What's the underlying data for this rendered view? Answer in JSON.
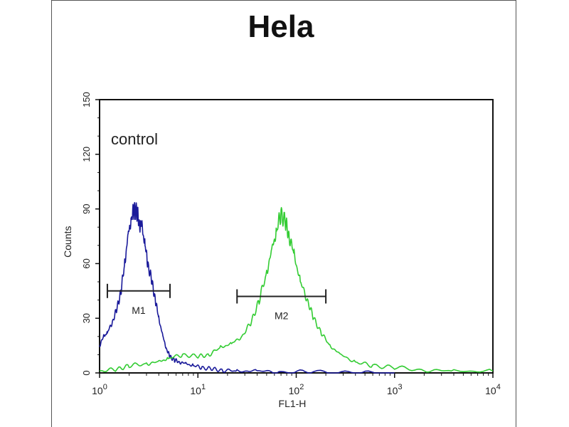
{
  "chart_data": {
    "type": "line",
    "title": "Hela",
    "xlabel": "FL1-H",
    "ylabel": "Counts",
    "x_scale": "log",
    "xlim": [
      1,
      10000
    ],
    "ylim": [
      0,
      150
    ],
    "y_ticks": [
      0,
      30,
      60,
      90,
      120,
      150
    ],
    "x_ticks": [
      {
        "value": 1,
        "base": "10",
        "exp": "0"
      },
      {
        "value": 10,
        "base": "10",
        "exp": "1"
      },
      {
        "value": 100,
        "base": "10",
        "exp": "2"
      },
      {
        "value": 1000,
        "base": "10",
        "exp": "3"
      },
      {
        "value": 10000,
        "base": "10",
        "exp": "4"
      }
    ],
    "grid": false,
    "annotations": {
      "control": "control"
    },
    "markers": [
      {
        "label": "M1",
        "x_start": 1.2,
        "x_end": 5.2,
        "y": 45
      },
      {
        "label": "M2",
        "x_start": 25,
        "x_end": 200,
        "y": 42
      }
    ],
    "series": [
      {
        "color": "#1a1a9a",
        "x": [
          1,
          1.1,
          1.2,
          1.35,
          1.5,
          1.65,
          1.8,
          1.95,
          2.1,
          2.25,
          2.4,
          2.55,
          2.7,
          2.9,
          3.1,
          3.4,
          3.7,
          4.0,
          4.4,
          4.8,
          5.2,
          5.8,
          6.5,
          7.5,
          9,
          11,
          14,
          18,
          25,
          40,
          70,
          150,
          400,
          1000
        ],
        "y": [
          15,
          20,
          22,
          28,
          35,
          45,
          60,
          75,
          85,
          90,
          88,
          82,
          80,
          70,
          60,
          50,
          40,
          30,
          20,
          13,
          9,
          7,
          6,
          5,
          4,
          3,
          2,
          1.5,
          1,
          1,
          0.5,
          0.5,
          0,
          0
        ]
      },
      {
        "color": "#33cc33",
        "x": [
          1,
          1.5,
          2,
          3,
          4,
          5,
          7,
          10,
          13,
          17,
          22,
          28,
          35,
          42,
          50,
          57,
          63,
          70,
          78,
          85,
          95,
          110,
          130,
          150,
          180,
          220,
          280,
          400,
          600,
          1000,
          2000,
          4000,
          10000
        ],
        "y": [
          1,
          2,
          4,
          5,
          6,
          8,
          10,
          9,
          10,
          14,
          16,
          20,
          28,
          40,
          55,
          68,
          78,
          88,
          82,
          75,
          65,
          50,
          40,
          30,
          22,
          15,
          10,
          6,
          4,
          3,
          1.5,
          1,
          1
        ]
      }
    ]
  }
}
